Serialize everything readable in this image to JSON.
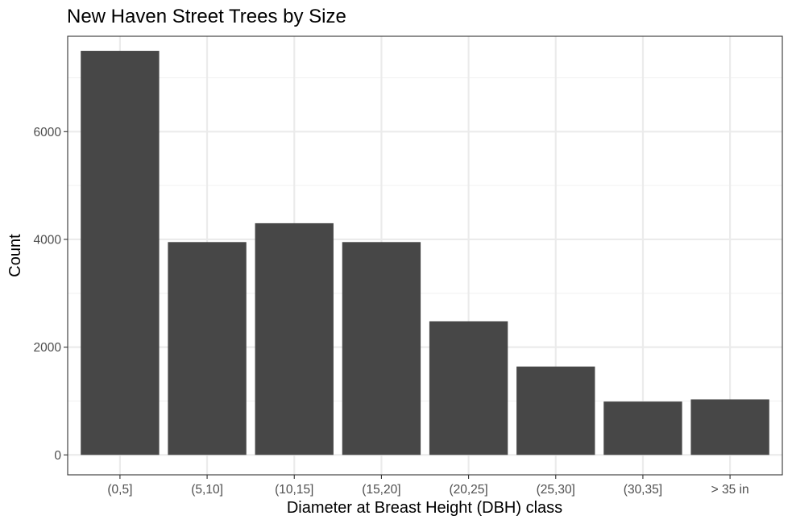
{
  "chart_data": {
    "type": "bar",
    "title": "New Haven Street Trees by Size",
    "xlabel": "Diameter at Breast Height (DBH) class",
    "ylabel": "Count",
    "categories": [
      "(0,5]",
      "(5,10]",
      "(10,15]",
      "(15,20]",
      "(20,25]",
      "(25,30]",
      "(30,35]",
      "> 35 in"
    ],
    "values": [
      7500,
      3950,
      4300,
      3950,
      2480,
      1640,
      990,
      1030
    ],
    "ylim": [
      -370,
      7770
    ],
    "yticks": [
      0,
      2000,
      4000,
      6000
    ],
    "ytick_labels": [
      "0",
      "2000",
      "4000",
      "6000"
    ],
    "grid": true,
    "bar_color": "#474747",
    "panel_border_color": "#333333",
    "grid_major_color": "#ebebeb",
    "grid_minor_color": "#f2f2f2"
  }
}
